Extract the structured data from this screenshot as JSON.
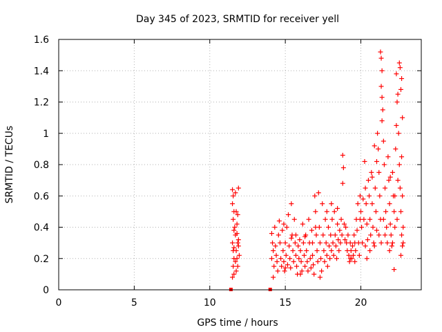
{
  "chart_data": {
    "type": "scatter",
    "title": "Day 345 of 2023, SRMTID for receiver yell",
    "xlabel": "GPS time / hours",
    "ylabel": "SRMTID / TECUs",
    "xlim": [
      0,
      24
    ],
    "ylim": [
      0,
      1.6
    ],
    "xticks": [
      0,
      5,
      10,
      15,
      20
    ],
    "yticks": [
      0,
      0.2,
      0.4,
      0.6,
      0.8,
      1,
      1.2,
      1.4,
      1.6
    ],
    "xtick_labels": [
      "0",
      "5",
      "10",
      "15",
      "20"
    ],
    "ytick_labels": [
      "0",
      "0.2",
      "0.4",
      "0.6",
      "0.8",
      "1",
      "1.2",
      "1.4",
      "1.6"
    ],
    "grid": true,
    "marker": "+",
    "color": "#ff0000",
    "zero_markers": [
      {
        "x": 11.4,
        "y": 0
      },
      {
        "x": 14.0,
        "y": 0
      }
    ],
    "series": [
      {
        "name": "SRMTID",
        "points": [
          [
            11.5,
            0.64
          ],
          [
            11.55,
            0.6
          ],
          [
            11.5,
            0.55
          ],
          [
            11.6,
            0.5
          ],
          [
            11.55,
            0.45
          ],
          [
            11.6,
            0.38
          ],
          [
            11.5,
            0.3
          ],
          [
            11.55,
            0.25
          ],
          [
            11.6,
            0.2
          ],
          [
            11.55,
            0.15
          ],
          [
            11.6,
            0.1
          ],
          [
            11.5,
            0.08
          ],
          [
            11.7,
            0.62
          ],
          [
            11.75,
            0.5
          ],
          [
            11.8,
            0.42
          ],
          [
            11.7,
            0.35
          ],
          [
            11.85,
            0.3
          ],
          [
            11.75,
            0.25
          ],
          [
            11.8,
            0.2
          ],
          [
            11.9,
            0.65
          ],
          [
            11.85,
            0.48
          ],
          [
            11.9,
            0.28
          ],
          [
            11.95,
            0.22
          ],
          [
            11.7,
            0.18
          ],
          [
            11.65,
            0.4
          ],
          [
            11.8,
            0.36
          ],
          [
            11.6,
            0.27
          ],
          [
            11.75,
            0.12
          ],
          [
            11.9,
            0.32
          ],
          [
            11.85,
            0.15
          ],
          [
            14.1,
            0.36
          ],
          [
            14.15,
            0.3
          ],
          [
            14.2,
            0.25
          ],
          [
            14.1,
            0.2
          ],
          [
            14.25,
            0.15
          ],
          [
            14.2,
            0.08
          ],
          [
            14.3,
            0.4
          ],
          [
            14.35,
            0.28
          ],
          [
            14.4,
            0.22
          ],
          [
            14.45,
            0.18
          ],
          [
            14.5,
            0.12
          ],
          [
            14.55,
            0.35
          ],
          [
            14.6,
            0.44
          ],
          [
            14.65,
            0.3
          ],
          [
            14.7,
            0.2
          ],
          [
            14.75,
            0.15
          ],
          [
            14.8,
            0.38
          ],
          [
            14.85,
            0.25
          ],
          [
            14.9,
            0.18
          ],
          [
            14.95,
            0.12
          ],
          [
            15.0,
            0.3
          ],
          [
            15.05,
            0.22
          ],
          [
            15.1,
            0.4
          ],
          [
            15.15,
            0.16
          ],
          [
            15.2,
            0.48
          ],
          [
            15.25,
            0.28
          ],
          [
            15.3,
            0.2
          ],
          [
            15.35,
            0.14
          ],
          [
            15.4,
            0.55
          ],
          [
            15.45,
            0.35
          ],
          [
            15.5,
            0.25
          ],
          [
            15.55,
            0.18
          ],
          [
            15.6,
            0.45
          ],
          [
            15.65,
            0.3
          ],
          [
            15.7,
            0.22
          ],
          [
            15.75,
            0.15
          ],
          [
            15.8,
            0.1
          ],
          [
            15.85,
            0.28
          ],
          [
            15.9,
            0.2
          ],
          [
            15.95,
            0.32
          ],
          [
            16.0,
            0.25
          ],
          [
            16.05,
            0.18
          ],
          [
            16.1,
            0.12
          ],
          [
            16.15,
            0.42
          ],
          [
            16.2,
            0.3
          ],
          [
            16.25,
            0.22
          ],
          [
            16.3,
            0.15
          ],
          [
            16.35,
            0.35
          ],
          [
            16.4,
            0.25
          ],
          [
            16.45,
            0.18
          ],
          [
            16.5,
            0.12
          ],
          [
            16.55,
            0.45
          ],
          [
            16.6,
            0.3
          ],
          [
            16.65,
            0.2
          ],
          [
            16.7,
            0.14
          ],
          [
            16.75,
            0.38
          ],
          [
            16.8,
            0.22
          ],
          [
            16.85,
            0.16
          ],
          [
            16.9,
            0.1
          ],
          [
            16.95,
            0.6
          ],
          [
            17.0,
            0.5
          ],
          [
            17.05,
            0.35
          ],
          [
            17.1,
            0.25
          ],
          [
            17.15,
            0.18
          ],
          [
            17.2,
            0.62
          ],
          [
            17.25,
            0.4
          ],
          [
            17.3,
            0.3
          ],
          [
            17.35,
            0.2
          ],
          [
            17.4,
            0.12
          ],
          [
            17.45,
            0.55
          ],
          [
            17.5,
            0.35
          ],
          [
            17.55,
            0.25
          ],
          [
            17.6,
            0.18
          ],
          [
            17.65,
            0.45
          ],
          [
            17.7,
            0.3
          ],
          [
            17.75,
            0.22
          ],
          [
            17.8,
            0.15
          ],
          [
            17.85,
            0.4
          ],
          [
            17.9,
            0.28
          ],
          [
            17.95,
            0.2
          ],
          [
            18.0,
            0.35
          ],
          [
            18.05,
            0.25
          ],
          [
            18.1,
            0.45
          ],
          [
            18.15,
            0.3
          ],
          [
            18.2,
            0.22
          ],
          [
            18.25,
            0.5
          ],
          [
            18.3,
            0.35
          ],
          [
            18.35,
            0.28
          ],
          [
            18.4,
            0.2
          ],
          [
            18.45,
            0.42
          ],
          [
            18.5,
            0.32
          ],
          [
            18.55,
            0.25
          ],
          [
            18.6,
            0.38
          ],
          [
            18.65,
            0.3
          ],
          [
            18.7,
            0.45
          ],
          [
            18.75,
            0.35
          ],
          [
            18.8,
            0.86
          ],
          [
            18.85,
            0.78
          ],
          [
            18.8,
            0.68
          ],
          [
            18.9,
            0.42
          ],
          [
            18.95,
            0.32
          ],
          [
            19.0,
            0.4
          ],
          [
            19.05,
            0.3
          ],
          [
            19.1,
            0.25
          ],
          [
            19.15,
            0.35
          ],
          [
            19.2,
            0.22
          ],
          [
            19.25,
            0.18
          ],
          [
            19.3,
            0.3
          ],
          [
            19.35,
            0.25
          ],
          [
            19.4,
            0.2
          ],
          [
            19.45,
            0.28
          ],
          [
            19.5,
            0.22
          ],
          [
            19.55,
            0.35
          ],
          [
            19.6,
            0.3
          ],
          [
            19.65,
            0.25
          ],
          [
            19.7,
            0.45
          ],
          [
            19.75,
            0.38
          ],
          [
            19.8,
            0.55
          ],
          [
            19.85,
            0.3
          ],
          [
            19.9,
            0.22
          ],
          [
            19.95,
            0.6
          ],
          [
            20.0,
            0.5
          ],
          [
            20.05,
            0.4
          ],
          [
            20.1,
            0.3
          ],
          [
            20.15,
            0.58
          ],
          [
            20.2,
            0.45
          ],
          [
            20.25,
            0.82
          ],
          [
            20.3,
            0.65
          ],
          [
            20.35,
            0.55
          ],
          [
            20.4,
            0.42
          ],
          [
            20.45,
            0.32
          ],
          [
            20.5,
            0.7
          ],
          [
            20.55,
            0.6
          ],
          [
            20.6,
            0.45
          ],
          [
            20.65,
            0.35
          ],
          [
            20.7,
            0.75
          ],
          [
            20.75,
            0.55
          ],
          [
            20.8,
            0.4
          ],
          [
            20.85,
            0.3
          ],
          [
            20.9,
            0.92
          ],
          [
            20.95,
            0.65
          ],
          [
            21.0,
            0.5
          ],
          [
            21.05,
            0.38
          ],
          [
            21.1,
            1.0
          ],
          [
            21.15,
            0.9
          ],
          [
            21.2,
            0.75
          ],
          [
            21.25,
            0.6
          ],
          [
            21.3,
            0.45
          ],
          [
            21.35,
            0.3
          ],
          [
            21.3,
            1.52
          ],
          [
            21.35,
            1.48
          ],
          [
            21.4,
            1.4
          ],
          [
            21.35,
            1.3
          ],
          [
            21.4,
            1.23
          ],
          [
            21.45,
            1.15
          ],
          [
            21.4,
            1.08
          ],
          [
            21.5,
            0.95
          ],
          [
            21.55,
            0.8
          ],
          [
            21.6,
            0.65
          ],
          [
            21.65,
            0.5
          ],
          [
            21.7,
            0.4
          ],
          [
            21.75,
            0.3
          ],
          [
            21.8,
            0.85
          ],
          [
            21.85,
            0.7
          ],
          [
            21.9,
            0.55
          ],
          [
            21.95,
            0.42
          ],
          [
            22.0,
            0.35
          ],
          [
            22.05,
            0.28
          ],
          [
            22.1,
            0.75
          ],
          [
            22.15,
            0.6
          ],
          [
            22.2,
            0.5
          ],
          [
            22.25,
            0.4
          ],
          [
            22.3,
            0.9
          ],
          [
            22.35,
            1.05
          ],
          [
            22.4,
            1.2
          ],
          [
            22.45,
            1.25
          ],
          [
            22.5,
            1.0
          ],
          [
            22.55,
            0.8
          ],
          [
            22.6,
            0.65
          ],
          [
            22.65,
            0.5
          ],
          [
            22.2,
            0.13
          ],
          [
            22.35,
            1.38
          ],
          [
            22.55,
            1.45
          ],
          [
            22.6,
            1.42
          ],
          [
            22.7,
            1.35
          ],
          [
            22.65,
            1.28
          ],
          [
            22.75,
            1.1
          ],
          [
            22.7,
            0.85
          ],
          [
            22.75,
            0.6
          ],
          [
            22.7,
            0.35
          ],
          [
            22.75,
            0.28
          ],
          [
            22.65,
            0.22
          ],
          [
            20.6,
            0.25
          ],
          [
            20.9,
            0.28
          ],
          [
            21.2,
            0.35
          ],
          [
            21.6,
            0.35
          ],
          [
            22.4,
            0.45
          ],
          [
            21.9,
            0.25
          ],
          [
            22.1,
            0.3
          ],
          [
            20.4,
            0.2
          ],
          [
            19.6,
            0.18
          ],
          [
            15.0,
            0.14
          ],
          [
            16.0,
            0.1
          ],
          [
            17.3,
            0.08
          ],
          [
            18.45,
            0.52
          ],
          [
            18.05,
            0.55
          ],
          [
            17.75,
            0.5
          ],
          [
            14.9,
            0.42
          ],
          [
            15.4,
            0.33
          ],
          [
            16.3,
            0.34
          ],
          [
            17.0,
            0.4
          ],
          [
            19.95,
            0.45
          ],
          [
            20.75,
            0.72
          ],
          [
            21.05,
            0.82
          ],
          [
            21.95,
            0.72
          ],
          [
            22.25,
            0.6
          ],
          [
            22.45,
            0.7
          ],
          [
            22.8,
            0.4
          ],
          [
            22.8,
            0.3
          ],
          [
            21.5,
            0.45
          ],
          [
            20.3,
            0.28
          ],
          [
            19.3,
            0.2
          ],
          [
            16.8,
            0.3
          ],
          [
            15.7,
            0.35
          ]
        ]
      }
    ]
  }
}
